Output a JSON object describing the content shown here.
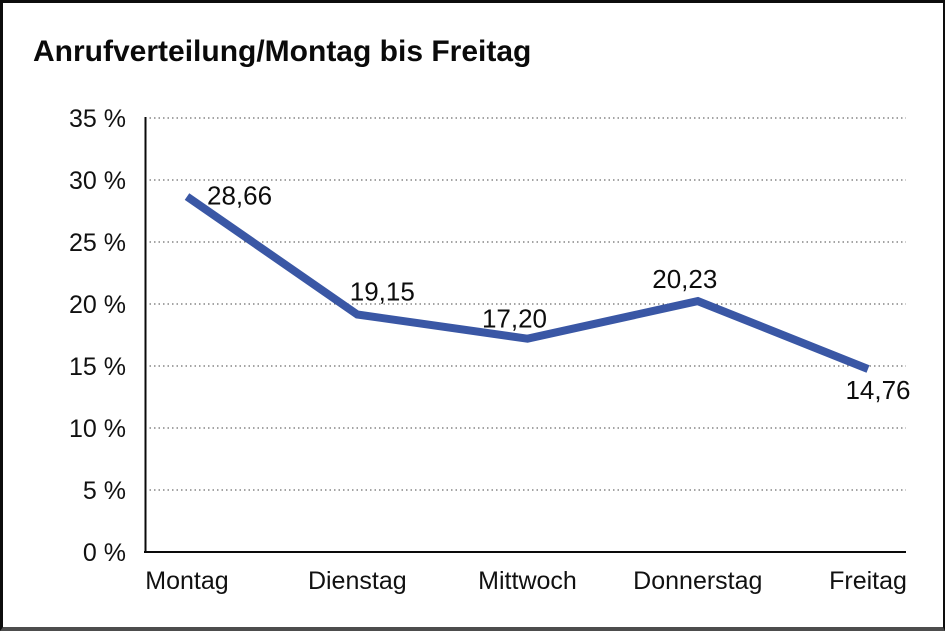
{
  "title": "Anrufverteilung/Montag bis Freitag",
  "chart_data": {
    "type": "line",
    "title": "Anrufverteilung/Montag bis Freitag",
    "categories": [
      "Montag",
      "Dienstag",
      "Mittwoch",
      "Donnerstag",
      "Freitag"
    ],
    "values": [
      28.66,
      19.15,
      17.2,
      20.23,
      14.76
    ],
    "value_labels": [
      "28,66",
      "19,15",
      "17,20",
      "20,23",
      "14,76"
    ],
    "y_ticks": [
      0,
      5,
      10,
      15,
      20,
      25,
      30,
      35
    ],
    "y_tick_labels": [
      "0 %",
      "5 %",
      "10 %",
      "15 %",
      "20 %",
      "25 %",
      "30 %",
      "35 %"
    ],
    "ylim": [
      0,
      35
    ],
    "xlabel": "",
    "ylabel": "",
    "grid": "horizontal-dotted",
    "legend": "none",
    "line_color": "#3A57A5"
  }
}
